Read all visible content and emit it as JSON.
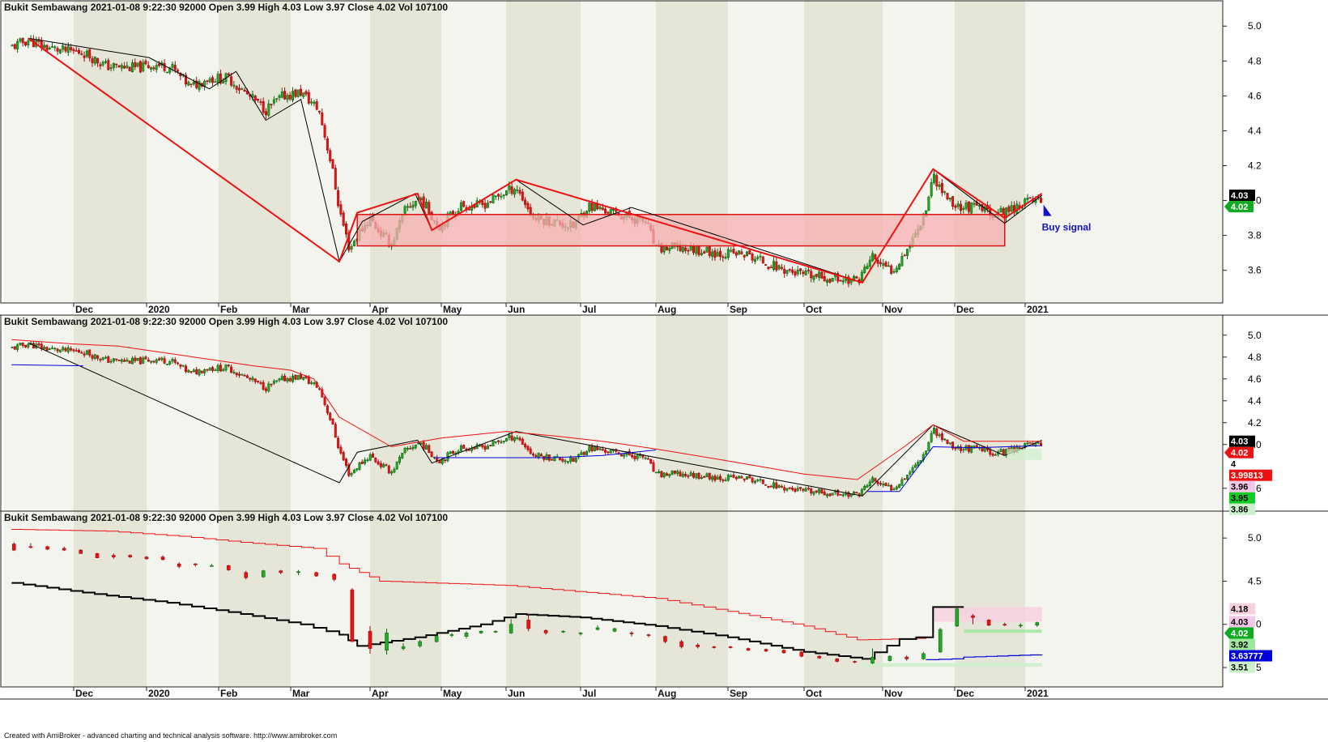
{
  "window": {
    "footer": "Created with AmiBroker - advanced charting and technical analysis software. http://www.amibroker.com"
  },
  "panes": [
    {
      "header": "Bukit Sembawang   2021-01-08 9:22:30   92000   Open 3.99   High 4.03   Low 3.97   Close 4.02   Vol 107100",
      "y_ticks": [
        "5.0",
        "4.8",
        "4.6",
        "4.4",
        "4.2",
        "4.0",
        "3.8",
        "3.6"
      ],
      "badges": [
        "4.03",
        "4.02"
      ],
      "annotation": "Buy signal"
    },
    {
      "header": "Bukit Sembawang   2021-01-08 9:22:30   92000   Open 3.99   High 4.03   Low 3.97   Close 4.02   Vol 107100",
      "y_ticks": [
        "5.0",
        "4.8",
        "4.6",
        "4.4",
        "4.2",
        "4.0",
        "3.6"
      ],
      "badges": [
        "4.03",
        "4.02",
        "4",
        "3.99813",
        "3.96",
        "3.95",
        "3.86"
      ]
    },
    {
      "header": "Bukit Sembawang   2021-01-08 9:22:30   92000   Open 3.99   High 4.03   Low 3.97   Close 4.02   Vol 107100",
      "y_ticks": [
        "5.0",
        "4.5",
        "4.0",
        "3.5"
      ],
      "badges": [
        "4.18",
        "4.03",
        "4.02",
        "3.92",
        "3.63777",
        "3.51"
      ]
    }
  ],
  "x_axis": {
    "months": [
      "Dec",
      "2020",
      "Feb",
      "Mar",
      "Apr",
      "May",
      "Jun",
      "Jul",
      "Aug",
      "Sep",
      "Oct",
      "Nov",
      "Dec",
      "2021"
    ]
  },
  "colors": {
    "up": "#22aa22",
    "down": "#ee1111",
    "zigzag": "#ee1111",
    "trendline": "#000000",
    "zone_fill": "#f7b0b0",
    "bg_light": "#f4f4ee",
    "bg_dark": "#e6e6d8",
    "upper_band": "#ee1111",
    "lower_band": "#0000dd"
  },
  "chart_data": [
    {
      "type": "candlestick",
      "title": "Bukit Sembawang",
      "ylim": [
        3.45,
        5.08
      ],
      "close_path": {
        "x": [
          "2019-11-05",
          "2019-11-12",
          "2019-11-19",
          "2019-11-26",
          "2019-12-05",
          "2019-12-15",
          "2019-12-28",
          "2020-01-05",
          "2020-01-12",
          "2020-01-20",
          "2020-01-27",
          "2020-02-05",
          "2020-02-13",
          "2020-02-20",
          "2020-02-27",
          "2020-03-05",
          "2020-03-12",
          "2020-03-17",
          "2020-03-20",
          "2020-03-24",
          "2020-03-27",
          "2020-04-01",
          "2020-04-05",
          "2020-04-10",
          "2020-04-16",
          "2020-04-22",
          "2020-04-30",
          "2020-05-10",
          "2020-05-20",
          "2020-06-01",
          "2020-06-05",
          "2020-06-12",
          "2020-06-20",
          "2020-06-28",
          "2020-07-04",
          "2020-07-12",
          "2020-07-22",
          "2020-07-28",
          "2020-08-01",
          "2020-08-08",
          "2020-08-18",
          "2020-08-28",
          "2020-09-08",
          "2020-09-20",
          "2020-10-01",
          "2020-10-15",
          "2020-10-22",
          "2020-10-26",
          "2020-10-28",
          "2020-11-01",
          "2020-11-05",
          "2020-11-10",
          "2020-11-15",
          "2020-11-19",
          "2020-11-22",
          "2020-11-26",
          "2020-12-01",
          "2020-12-10",
          "2020-12-20",
          "2020-12-25",
          "2021-01-01",
          "2021-01-08"
        ],
        "y": [
          4.88,
          4.92,
          4.88,
          4.86,
          4.85,
          4.77,
          4.76,
          4.78,
          4.76,
          4.65,
          4.7,
          4.7,
          4.6,
          4.52,
          4.6,
          4.62,
          4.52,
          4.2,
          3.95,
          3.72,
          3.8,
          3.9,
          3.82,
          3.75,
          3.95,
          4.02,
          3.85,
          3.97,
          3.97,
          4.05,
          4.08,
          3.9,
          3.88,
          3.85,
          3.97,
          3.94,
          3.9,
          3.88,
          3.72,
          3.73,
          3.72,
          3.7,
          3.69,
          3.62,
          3.57,
          3.55,
          3.54,
          3.63,
          3.68,
          3.62,
          3.6,
          3.7,
          3.82,
          3.95,
          4.15,
          4.05,
          3.97,
          3.96,
          3.92,
          3.95,
          3.99,
          4.02
        ]
      },
      "zigzag": {
        "x": [
          "2019-11-12",
          "2020-03-20",
          "2020-03-27",
          "2020-04-21",
          "2020-04-27",
          "2020-06-05",
          "2020-10-24",
          "2020-11-22",
          "2020-12-23",
          "2021-01-08"
        ],
        "y": [
          4.93,
          3.65,
          3.93,
          4.04,
          3.83,
          4.12,
          3.53,
          4.18,
          3.9,
          4.04
        ]
      },
      "resistance_zone": {
        "x": [
          "2020-03-27",
          "2020-12-23"
        ],
        "y": [
          3.74,
          3.92
        ]
      },
      "signal": {
        "label": "Buy signal",
        "x": "2021-01-08",
        "y": 3.93
      }
    },
    {
      "type": "candlestick",
      "title": "Bukit Sembawang",
      "ylim": [
        3.45,
        5.08
      ],
      "upper_band": {
        "x": [
          "2019-11-05",
          "2019-12-01",
          "2019-12-20",
          "2020-01-15",
          "2020-02-15",
          "2020-03-01",
          "2020-03-10",
          "2020-03-20",
          "2020-04-10",
          "2020-05-01",
          "2020-06-01",
          "2020-06-20",
          "2020-07-10",
          "2020-08-01",
          "2020-09-01",
          "2020-10-01",
          "2020-10-22",
          "2020-11-10",
          "2020-11-22",
          "2020-12-05",
          "2021-01-08"
        ],
        "y": [
          4.96,
          4.92,
          4.9,
          4.82,
          4.72,
          4.68,
          4.6,
          4.25,
          3.98,
          4.06,
          4.12,
          4.08,
          4.03,
          3.96,
          3.85,
          3.73,
          3.68,
          3.98,
          4.18,
          4.03,
          4.03
        ]
      },
      "lower_band": {
        "x": [
          "2019-11-05",
          "2019-12-05",
          "2020-04-20",
          "2020-04-28",
          "2020-06-20",
          "2020-07-10",
          "2020-08-01",
          "2020-10-24",
          "2020-10-26",
          "2020-11-08",
          "2020-11-22",
          "2020-12-10",
          "2021-01-08"
        ],
        "y": [
          4.73,
          4.72,
          null,
          3.88,
          3.88,
          3.9,
          3.95,
          null,
          3.57,
          3.57,
          3.98,
          3.97,
          3.99
        ]
      },
      "markers": {
        "values": [
          4.03,
          4.02,
          4.0,
          3.99813,
          3.96,
          3.95,
          3.86
        ]
      }
    },
    {
      "type": "candlestick",
      "title": "Bukit Sembawang",
      "ylim": [
        3.35,
        5.18
      ],
      "weekly_candles": {
        "x": [
          "2019-11-06",
          "2019-11-13",
          "2019-11-20",
          "2019-11-27",
          "2019-12-04",
          "2019-12-11",
          "2019-12-18",
          "2019-12-25",
          "2020-01-01",
          "2020-01-08",
          "2020-01-15",
          "2020-01-22",
          "2020-01-29",
          "2020-02-05",
          "2020-02-12",
          "2020-02-19",
          "2020-02-26",
          "2020-03-04",
          "2020-03-11",
          "2020-03-18",
          "2020-03-25",
          "2020-04-01",
          "2020-04-08",
          "2020-04-15",
          "2020-04-22",
          "2020-04-29",
          "2020-05-06",
          "2020-05-13",
          "2020-05-20",
          "2020-05-27",
          "2020-06-03",
          "2020-06-10",
          "2020-06-17",
          "2020-06-24",
          "2020-07-01",
          "2020-07-08",
          "2020-07-15",
          "2020-07-22",
          "2020-07-29",
          "2020-08-05",
          "2020-08-12",
          "2020-08-19",
          "2020-08-26",
          "2020-09-02",
          "2020-09-09",
          "2020-09-16",
          "2020-09-23",
          "2020-09-30",
          "2020-10-07",
          "2020-10-14",
          "2020-10-21",
          "2020-10-28",
          "2020-11-04",
          "2020-11-11",
          "2020-11-18",
          "2020-11-25",
          "2020-12-02",
          "2020-12-09",
          "2020-12-16",
          "2020-12-23",
          "2020-12-30",
          "2021-01-06"
        ],
        "ohlc": [
          [
            4.93,
            4.95,
            4.85,
            4.86
          ],
          [
            4.9,
            4.94,
            4.88,
            4.89
          ],
          [
            4.9,
            4.91,
            4.86,
            4.87
          ],
          [
            4.88,
            4.9,
            4.85,
            4.86
          ],
          [
            4.86,
            4.87,
            4.82,
            4.82
          ],
          [
            4.82,
            4.83,
            4.77,
            4.77
          ],
          [
            4.8,
            4.82,
            4.76,
            4.78
          ],
          [
            4.8,
            4.81,
            4.77,
            4.78
          ],
          [
            4.78,
            4.79,
            4.75,
            4.76
          ],
          [
            4.78,
            4.8,
            4.74,
            4.75
          ],
          [
            4.7,
            4.72,
            4.65,
            4.67
          ],
          [
            4.7,
            4.71,
            4.67,
            4.69
          ],
          [
            4.68,
            4.7,
            4.67,
            4.68
          ],
          [
            4.68,
            4.69,
            4.62,
            4.63
          ],
          [
            4.6,
            4.62,
            4.52,
            4.54
          ],
          [
            4.55,
            4.63,
            4.54,
            4.62
          ],
          [
            4.62,
            4.63,
            4.58,
            4.6
          ],
          [
            4.6,
            4.63,
            4.57,
            4.61
          ],
          [
            4.6,
            4.61,
            4.55,
            4.56
          ],
          [
            4.58,
            4.59,
            4.5,
            4.52
          ],
          [
            4.4,
            4.42,
            3.8,
            3.8
          ],
          [
            3.92,
            3.98,
            3.66,
            3.72
          ],
          [
            3.7,
            3.95,
            3.65,
            3.9
          ],
          [
            3.72,
            3.78,
            3.7,
            3.74
          ],
          [
            3.75,
            3.82,
            3.73,
            3.8
          ],
          [
            3.8,
            3.88,
            3.79,
            3.86
          ],
          [
            3.88,
            3.9,
            3.85,
            3.88
          ],
          [
            3.86,
            3.92,
            3.84,
            3.9
          ],
          [
            3.9,
            3.93,
            3.89,
            3.92
          ],
          [
            3.91,
            3.93,
            3.9,
            3.92
          ],
          [
            3.9,
            4.06,
            3.89,
            4.0
          ],
          [
            4.05,
            4.12,
            3.92,
            3.95
          ],
          [
            3.93,
            3.94,
            3.88,
            3.9
          ],
          [
            3.92,
            3.93,
            3.9,
            3.92
          ],
          [
            3.9,
            3.91,
            3.87,
            3.9
          ],
          [
            3.94,
            3.99,
            3.93,
            3.96
          ],
          [
            3.92,
            3.96,
            3.91,
            3.95
          ],
          [
            3.9,
            3.92,
            3.86,
            3.89
          ],
          [
            3.88,
            3.89,
            3.85,
            3.87
          ],
          [
            3.86,
            3.87,
            3.78,
            3.8
          ],
          [
            3.8,
            3.82,
            3.72,
            3.74
          ],
          [
            3.76,
            3.78,
            3.72,
            3.74
          ],
          [
            3.74,
            3.75,
            3.72,
            3.73
          ],
          [
            3.74,
            3.75,
            3.72,
            3.73
          ],
          [
            3.72,
            3.73,
            3.69,
            3.7
          ],
          [
            3.71,
            3.72,
            3.68,
            3.69
          ],
          [
            3.7,
            3.71,
            3.66,
            3.67
          ],
          [
            3.68,
            3.69,
            3.62,
            3.63
          ],
          [
            3.63,
            3.64,
            3.6,
            3.61
          ],
          [
            3.6,
            3.61,
            3.56,
            3.57
          ],
          [
            3.57,
            3.58,
            3.55,
            3.56
          ],
          [
            3.55,
            3.72,
            3.54,
            3.62
          ],
          [
            3.58,
            3.64,
            3.57,
            3.63
          ],
          [
            3.62,
            3.64,
            3.58,
            3.6
          ],
          [
            3.6,
            3.68,
            3.59,
            3.66
          ],
          [
            3.68,
            3.96,
            3.67,
            3.94
          ],
          [
            3.98,
            4.2,
            3.97,
            4.18
          ],
          [
            4.1,
            4.12,
            4.0,
            4.08
          ],
          [
            4.05,
            4.06,
            3.98,
            3.99
          ],
          [
            4.0,
            4.02,
            3.98,
            3.99
          ],
          [
            3.99,
            4.01,
            3.96,
            3.99
          ],
          [
            3.99,
            4.03,
            3.97,
            4.02
          ]
        ]
      },
      "upper_line": {
        "x": [
          "2019-11-05",
          "2019-12-15",
          "2020-01-15",
          "2020-02-10",
          "2020-03-10",
          "2020-03-20",
          "2020-04-05",
          "2020-06-01",
          "2020-08-01",
          "2020-09-01",
          "2020-10-01",
          "2020-10-22",
          "2020-11-19",
          "2020-11-22",
          "2021-01-08"
        ],
        "y": [
          5.1,
          5.08,
          5.02,
          4.95,
          4.88,
          4.7,
          4.5,
          4.45,
          4.3,
          4.15,
          3.98,
          3.82,
          3.84,
          null,
          null
        ]
      },
      "lower_line": {
        "x": [
          "2019-11-05",
          "2019-12-10",
          "2020-01-10",
          "2020-02-10",
          "2020-03-05",
          "2020-03-20",
          "2020-03-27",
          "2020-04-20",
          "2020-05-20",
          "2020-06-05",
          "2020-07-01",
          "2020-08-01",
          "2020-09-01",
          "2020-10-01",
          "2020-10-24",
          "2020-11-08",
          "2020-11-15",
          "2020-11-22",
          "2020-12-05"
        ],
        "y": [
          4.48,
          4.35,
          4.25,
          4.12,
          4.0,
          3.88,
          3.75,
          3.85,
          4.0,
          4.12,
          4.08,
          3.98,
          3.85,
          3.68,
          3.6,
          3.83,
          3.85,
          4.2,
          4.2
        ]
      },
      "blue_line": {
        "x": [
          "2020-11-19",
          "2020-11-30",
          "2020-12-05",
          "2021-01-08"
        ],
        "y": [
          3.59,
          3.6,
          3.62,
          3.65
        ]
      },
      "markers": {
        "values": [
          4.18,
          4.03,
          4.02,
          3.92,
          3.63777,
          3.51
        ]
      }
    }
  ]
}
